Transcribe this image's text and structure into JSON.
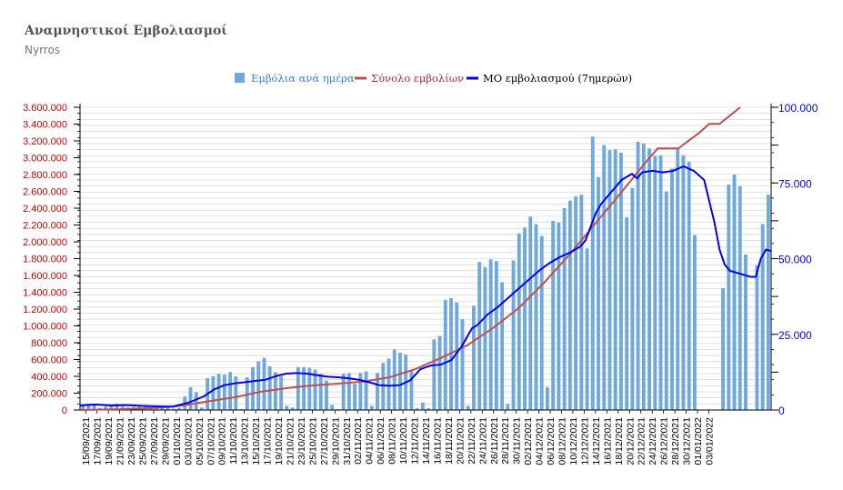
{
  "title": "Αναμνηστικοί Εμβολιασμοί",
  "subtitle": "Nyrros",
  "colors": {
    "bars": "#6fa8dc",
    "cumulative": "#c0504d",
    "avg": "#0000ee",
    "left_axis": "#cc0000",
    "grid": "#cccccc"
  },
  "chart_data": {
    "type": "bar",
    "legend_position": "top-center",
    "grid": true,
    "series": [
      {
        "name": "Εμβόλια ανά ημέρα",
        "type": "bar",
        "axis": "left",
        "values": [
          50000,
          75000,
          60000,
          25000,
          40000,
          50000,
          75000,
          40000,
          30000,
          35000,
          40000,
          45000,
          35000,
          15000,
          25000,
          40000,
          15000,
          25000,
          160000,
          270000,
          210000,
          30000,
          380000,
          400000,
          430000,
          420000,
          450000,
          400000,
          10000,
          390000,
          510000,
          580000,
          620000,
          520000,
          450000,
          400000,
          50000,
          30000,
          510000,
          510000,
          500000,
          480000,
          430000,
          350000,
          60000,
          10000,
          430000,
          440000,
          310000,
          440000,
          460000,
          50000,
          440000,
          560000,
          610000,
          720000,
          680000,
          660000,
          470000,
          20000,
          90000,
          20000,
          840000,
          880000,
          1310000,
          1330000,
          1280000,
          1080000,
          50000,
          1240000,
          1760000,
          1700000,
          1790000,
          1770000,
          1520000,
          70000,
          1780000,
          2100000,
          2170000,
          2300000,
          2210000,
          2070000,
          270000,
          2250000,
          2230000,
          2400000,
          2490000,
          2540000,
          2560000,
          1920000,
          3250000,
          2770000,
          3150000,
          3090000,
          3100000,
          3060000,
          2290000,
          2640000,
          3190000,
          3170000,
          3110000,
          3020000,
          3030000,
          2600000,
          2870000,
          3110000,
          3030000,
          2950000,
          2080000,
          0,
          0,
          0,
          0,
          1450000,
          2680000,
          2800000,
          2660000,
          1850000,
          0,
          1720000,
          2210000,
          2560000
        ]
      },
      {
        "name": "Σύνολο εμβολίων",
        "type": "line",
        "axis": "right"
      },
      {
        "name": "ΜΟ εμβολιασμού (7ημερών)",
        "type": "line",
        "axis": "right"
      }
    ],
    "cumulative_points": [
      [
        0,
        0
      ],
      [
        5,
        150
      ],
      [
        10,
        400
      ],
      [
        15,
        700
      ],
      [
        20,
        1500
      ],
      [
        25,
        2900
      ],
      [
        30,
        4200
      ],
      [
        35,
        6000
      ],
      [
        40,
        7200
      ],
      [
        45,
        8100
      ],
      [
        50,
        8700
      ],
      [
        55,
        9400
      ],
      [
        60,
        10800
      ],
      [
        65,
        13500
      ],
      [
        70,
        17200
      ],
      [
        75,
        21300
      ],
      [
        80,
        27000
      ],
      [
        85,
        33600
      ],
      [
        90,
        42100
      ],
      [
        95,
        51500
      ],
      [
        100,
        61800
      ],
      [
        105,
        72000
      ],
      [
        110,
        82500
      ],
      [
        112,
        86400
      ],
      [
        116,
        86400
      ],
      [
        120,
        91500
      ],
      [
        122,
        94500
      ],
      [
        124,
        94500
      ],
      [
        128,
        100000
      ]
    ],
    "avg_points": [
      [
        0,
        1500
      ],
      [
        3,
        1800
      ],
      [
        6,
        1500
      ],
      [
        9,
        1600
      ],
      [
        12,
        1400
      ],
      [
        15,
        1200
      ],
      [
        18,
        1100
      ],
      [
        21,
        2400
      ],
      [
        24,
        4500
      ],
      [
        26,
        6800
      ],
      [
        28,
        8200
      ],
      [
        30,
        8800
      ],
      [
        32,
        9200
      ],
      [
        34,
        9600
      ],
      [
        36,
        10000
      ],
      [
        38,
        11200
      ],
      [
        40,
        12000
      ],
      [
        42,
        12200
      ],
      [
        44,
        12000
      ],
      [
        46,
        11500
      ],
      [
        48,
        11000
      ],
      [
        50,
        10800
      ],
      [
        52,
        10500
      ],
      [
        54,
        10000
      ],
      [
        56,
        9200
      ],
      [
        58,
        8200
      ],
      [
        60,
        8000
      ],
      [
        62,
        8200
      ],
      [
        64,
        9800
      ],
      [
        66,
        13500
      ],
      [
        68,
        14700
      ],
      [
        70,
        15000
      ],
      [
        72,
        16500
      ],
      [
        74,
        21000
      ],
      [
        76,
        27000
      ],
      [
        77,
        28000
      ],
      [
        79,
        31500
      ],
      [
        81,
        34000
      ],
      [
        83,
        37000
      ],
      [
        85,
        40000
      ],
      [
        87,
        43000
      ],
      [
        89,
        46000
      ],
      [
        91,
        48500
      ],
      [
        93,
        50500
      ],
      [
        95,
        52000
      ],
      [
        97,
        54000
      ],
      [
        98,
        56000
      ],
      [
        100,
        65000
      ],
      [
        101,
        68000
      ],
      [
        103,
        72000
      ],
      [
        105,
        76000
      ],
      [
        107,
        78000
      ],
      [
        108,
        76500
      ],
      [
        109,
        78500
      ],
      [
        111,
        79000
      ],
      [
        113,
        78500
      ],
      [
        115,
        79000
      ],
      [
        117,
        80500
      ],
      [
        119,
        79000
      ],
      [
        121,
        76000
      ],
      [
        123,
        62000
      ],
      [
        124,
        53000
      ],
      [
        125,
        48000
      ],
      [
        126,
        46000
      ],
      [
        128,
        45000
      ],
      [
        130,
        44000
      ],
      [
        131,
        44000
      ],
      [
        132,
        50000
      ],
      [
        133,
        53000
      ],
      [
        134,
        52500
      ]
    ],
    "y_left": {
      "min": 0,
      "max": 3600000,
      "step": 200000,
      "ticks": [
        "0",
        "200.000",
        "400.000",
        "600.000",
        "800.000",
        "1.000.000",
        "1.200.000",
        "1.400.000",
        "1.600.000",
        "1.800.000",
        "2.000.000",
        "2.200.000",
        "2.400.000",
        "2.600.000",
        "2.800.000",
        "3.000.000",
        "3.200.000",
        "3.400.000",
        "3.600.000"
      ]
    },
    "y_right": {
      "min": 0,
      "max": 100000,
      "ticks": [
        "0",
        "25.000",
        "50.000",
        "75.000",
        "100.000"
      ]
    },
    "x": {
      "ticks": [
        "15/09/2021",
        "17/09/2021",
        "19/09/2021",
        "21/09/2021",
        "23/09/2021",
        "25/09/2021",
        "27/09/2021",
        "29/09/2021",
        "01/10/2021",
        "03/10/2021",
        "05/10/2021",
        "07/10/2021",
        "09/10/2021",
        "11/10/2021",
        "13/10/2021",
        "15/10/2021",
        "17/10/2021",
        "19/10/2021",
        "21/10/2021",
        "23/10/2021",
        "25/10/2021",
        "27/10/2021",
        "29/10/2021",
        "31/10/2021",
        "02/11/2021",
        "04/11/2021",
        "06/11/2021",
        "08/11/2021",
        "10/11/2021",
        "12/11/2021",
        "14/11/2021",
        "16/11/2021",
        "18/11/2021",
        "20/11/2021",
        "22/11/2021",
        "24/11/2021",
        "26/11/2021",
        "28/11/2021",
        "30/11/2021",
        "02/12/2021",
        "04/12/2021",
        "06/12/2021",
        "08/12/2021",
        "10/12/2021",
        "12/12/2021",
        "14/12/2021",
        "16/12/2021",
        "18/12/2021",
        "20/12/2021",
        "22/12/2021",
        "24/12/2021",
        "26/12/2021",
        "28/12/2021",
        "30/12/2021",
        "01/01/2022",
        "03/01/2022"
      ]
    }
  }
}
